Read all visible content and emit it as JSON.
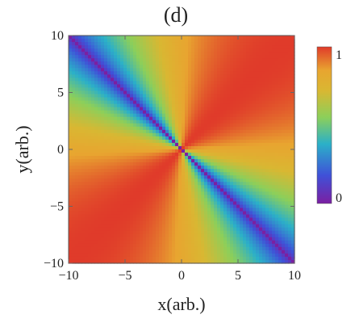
{
  "chart_data": {
    "type": "heatmap",
    "title": "(d)",
    "xlabel": "x(arb.)",
    "ylabel": "y(arb.)",
    "xlim": [
      -10,
      10
    ],
    "ylim": [
      -10,
      10
    ],
    "xticks": [
      -10,
      -5,
      0,
      5,
      10
    ],
    "yticks": [
      -10,
      -5,
      0,
      5,
      10
    ],
    "xtick_labels": [
      "−10",
      "−5",
      "0",
      "5",
      "10"
    ],
    "ytick_labels": [
      "−10",
      "−5",
      "0",
      "5",
      "10"
    ],
    "colorbar": {
      "range": [
        0,
        1
      ],
      "tick_labels": [
        "0",
        "1"
      ],
      "colors": [
        "#7b1fa2",
        "#3f51d8",
        "#2bb0c8",
        "#8ccf5a",
        "#d9b732",
        "#e8a530",
        "#e03b2a"
      ]
    },
    "field": {
      "description_of_values": "value in [0,1] varying with polar angle about origin; minima along angle 135deg/-45deg, maxima along 45deg/-135deg",
      "min_angle_deg": 135,
      "max_angle_deg": 45,
      "min_value": 0,
      "max_value": 1
    },
    "grid": false,
    "legend": "colorbar-right"
  }
}
